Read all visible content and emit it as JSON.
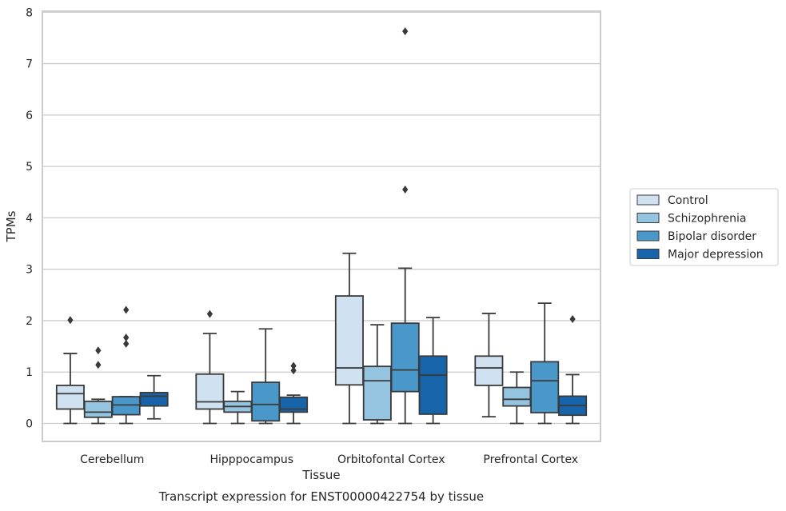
{
  "chart_data": {
    "type": "box",
    "title": "Transcript expression for ENST00000422754 by tissue",
    "xlabel": "Tissue",
    "ylabel": "TPMs",
    "ylim": [
      -0.35,
      8.02
    ],
    "yticks": [
      0,
      1,
      2,
      3,
      4,
      5,
      6,
      7,
      8
    ],
    "grid": true,
    "legend_position": "right",
    "categories": [
      "Cerebellum",
      "Hipppocampus",
      "Orbitofontal Cortex",
      "Prefrontal Cortex"
    ],
    "series": [
      {
        "name": "Control",
        "color": "#d0e1f2",
        "boxes": [
          {
            "min": 0.0,
            "q1": 0.28,
            "median": 0.58,
            "q3": 0.74,
            "max": 1.36,
            "outliers": [
              2.01
            ]
          },
          {
            "min": 0.0,
            "q1": 0.28,
            "median": 0.42,
            "q3": 0.96,
            "max": 1.75,
            "outliers": [
              2.13
            ]
          },
          {
            "min": 0.0,
            "q1": 0.75,
            "median": 1.08,
            "q3": 2.48,
            "max": 3.31,
            "outliers": []
          },
          {
            "min": 0.13,
            "q1": 0.74,
            "median": 1.08,
            "q3": 1.31,
            "max": 2.14,
            "outliers": []
          }
        ]
      },
      {
        "name": "Schizophrenia",
        "color": "#94c4df",
        "boxes": [
          {
            "min": 0.0,
            "q1": 0.12,
            "median": 0.22,
            "q3": 0.43,
            "max": 0.47,
            "outliers": [
              1.14,
              1.42
            ]
          },
          {
            "min": 0.0,
            "q1": 0.22,
            "median": 0.33,
            "q3": 0.43,
            "max": 0.62,
            "outliers": []
          },
          {
            "min": 0.0,
            "q1": 0.07,
            "median": 0.83,
            "q3": 1.11,
            "max": 1.92,
            "outliers": []
          },
          {
            "min": 0.0,
            "q1": 0.34,
            "median": 0.47,
            "q3": 0.7,
            "max": 1.0,
            "outliers": []
          }
        ]
      },
      {
        "name": "Bipolar disorder",
        "color": "#4a98c9",
        "boxes": [
          {
            "min": 0.0,
            "q1": 0.17,
            "median": 0.36,
            "q3": 0.52,
            "max": 0.52,
            "outliers": [
              1.55,
              1.67,
              2.21
            ]
          },
          {
            "min": 0.0,
            "q1": 0.05,
            "median": 0.37,
            "q3": 0.8,
            "max": 1.84,
            "outliers": []
          },
          {
            "min": 0.0,
            "q1": 0.62,
            "median": 1.04,
            "q3": 1.95,
            "max": 3.02,
            "outliers": [
              4.55,
              7.63
            ]
          },
          {
            "min": 0.0,
            "q1": 0.21,
            "median": 0.83,
            "q3": 1.2,
            "max": 2.34,
            "outliers": []
          }
        ]
      },
      {
        "name": "Major depression",
        "color": "#1764ab",
        "boxes": [
          {
            "min": 0.09,
            "q1": 0.34,
            "median": 0.53,
            "q3": 0.6,
            "max": 0.93,
            "outliers": []
          },
          {
            "min": 0.0,
            "q1": 0.22,
            "median": 0.28,
            "q3": 0.51,
            "max": 0.55,
            "outliers": [
              1.03,
              1.12
            ]
          },
          {
            "min": 0.0,
            "q1": 0.18,
            "median": 0.94,
            "q3": 1.31,
            "max": 2.06,
            "outliers": []
          },
          {
            "min": 0.0,
            "q1": 0.16,
            "median": 0.35,
            "q3": 0.53,
            "max": 0.95,
            "outliers": [
              2.03
            ]
          }
        ]
      }
    ]
  }
}
